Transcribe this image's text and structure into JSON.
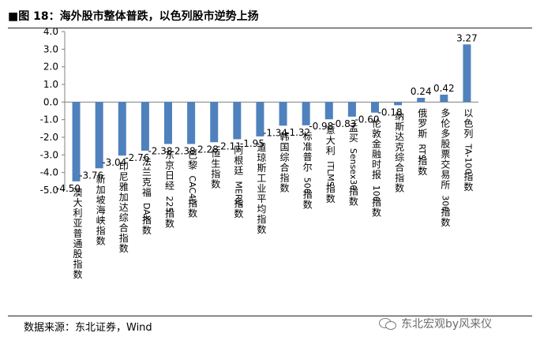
{
  "title": "■图 18：海外股市整体普跌，以色列股市逆势上扬",
  "source": "数据来源：东北证券，Wind",
  "watermark": "东北宏观by风来仪",
  "chart_data": {
    "type": "bar",
    "title": "",
    "xlabel": "",
    "ylabel": "",
    "ylim": [
      -5.0,
      4.0
    ],
    "yticks": [
      "4.0",
      "3.0",
      "2.0",
      "1.0",
      "0.0",
      "-1.0",
      "-2.0",
      "-3.0",
      "-4.0",
      "-5.0"
    ],
    "bar_color": "#4f81bd",
    "categories": [
      "澳大利亚普通股指数",
      "新加坡海峡指数",
      "印尼雅加达综合指数",
      "法兰克福DAX指数",
      "东京日经225指数",
      "巴黎CAC40指数",
      "恒生指数",
      "阿根廷MERV指数",
      "道琼斯工业平均指数",
      "韩国综合指数",
      "标准普尔500指数",
      "意大利ITLMS指数",
      "孟买Sensex30指数",
      "伦敦金融时报100指数",
      "纳斯达克综合指数",
      "俄罗斯RTS指数",
      "多伦多股票交易所300指数",
      "以色列TA-100指数"
    ],
    "values": [
      -4.5,
      -3.76,
      -3.04,
      -2.76,
      -2.38,
      -2.38,
      -2.28,
      -2.11,
      -1.95,
      -1.34,
      -1.32,
      -0.98,
      -0.83,
      -0.6,
      -0.18,
      0.24,
      0.42,
      3.27
    ],
    "data_labels": [
      "-4.50",
      "-3.76",
      "-3.04",
      "-2.76",
      "-2.38",
      "-2.38",
      "-2.28",
      "-2.11",
      "-1.95",
      "-1.34",
      "-1.32",
      "-0.98",
      "-0.83",
      "-0.60",
      "-0.18",
      "0.24",
      "0.42",
      "3.27"
    ]
  }
}
